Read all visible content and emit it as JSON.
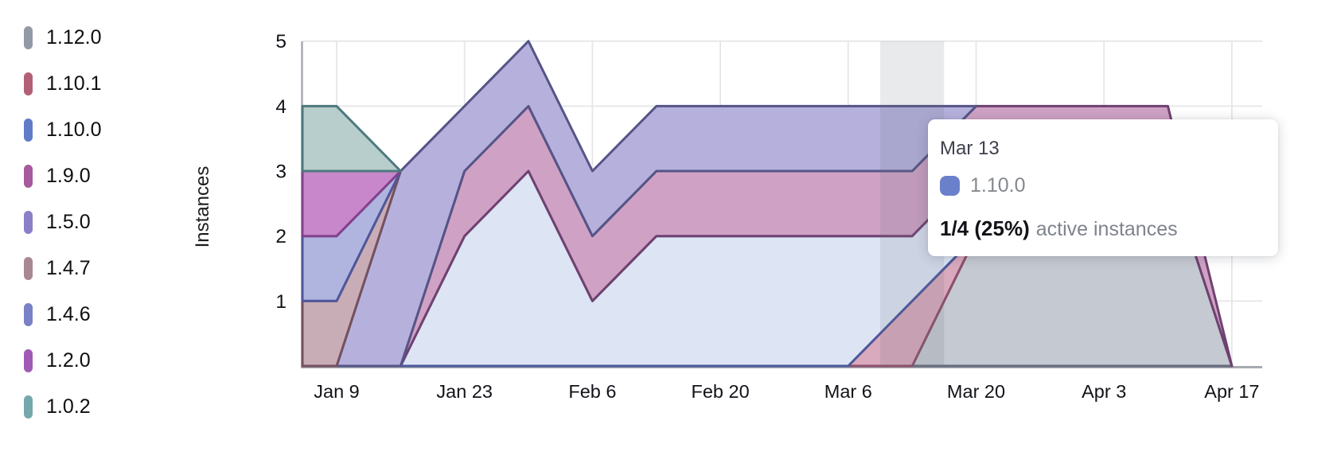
{
  "chart_data": {
    "type": "area",
    "stacked": true,
    "title": "",
    "xlabel": "",
    "ylabel": "Instances",
    "ylim": [
      0,
      5
    ],
    "yticks": [
      1,
      2,
      3,
      4,
      5
    ],
    "grid": true,
    "legend_position": "left",
    "stack_order_note": "series array order is stack order, bottom to top; legend shows same order top to bottom",
    "x": [
      "Jan 2",
      "Jan 9",
      "Jan 16",
      "Jan 23",
      "Jan 30",
      "Feb 6",
      "Feb 13",
      "Feb 20",
      "Feb 27",
      "Mar 6",
      "Mar 13",
      "Mar 20",
      "Mar 27",
      "Apr 3",
      "Apr 10",
      "Apr 17"
    ],
    "x_tick_indices": [
      1,
      3,
      5,
      7,
      9,
      11,
      13,
      15
    ],
    "x_tick_labels": [
      "Jan 9",
      "Jan 23",
      "Feb 6",
      "Feb 20",
      "Mar 6",
      "Mar 20",
      "Apr 3",
      "Apr 17"
    ],
    "series": [
      {
        "name": "1.12.0",
        "legend_color": "#939aa7",
        "fill": "#c5c9d1",
        "stroke": "#646b7e",
        "values": [
          0,
          0,
          0,
          0,
          0,
          0,
          0,
          0,
          0,
          0,
          0,
          2,
          3,
          3,
          3,
          0
        ]
      },
      {
        "name": "1.10.1",
        "legend_color": "#b26078",
        "fill": "#d9a9be",
        "stroke": "#8d4e6a",
        "values": [
          0,
          0,
          0,
          0,
          0,
          0,
          0,
          0,
          0,
          0,
          1,
          0,
          0,
          0,
          0,
          0
        ]
      },
      {
        "name": "1.10.0",
        "legend_color": "#5f7cc9",
        "fill": "#dde4f4",
        "stroke": "#4b589c",
        "values": [
          0,
          0,
          0,
          2,
          3,
          1,
          2,
          2,
          2,
          2,
          1,
          1,
          0,
          0,
          0,
          0
        ]
      },
      {
        "name": "1.9.0",
        "legend_color": "#a75a9e",
        "fill": "#cfa2c5",
        "stroke": "#6f4170",
        "values": [
          0,
          0,
          0,
          1,
          1,
          1,
          1,
          1,
          1,
          1,
          1,
          1,
          1,
          1,
          1,
          0
        ]
      },
      {
        "name": "1.5.0",
        "legend_color": "#8b7fc8",
        "fill": "#b6b1dc",
        "stroke": "#555487",
        "values": [
          0,
          0,
          3,
          1,
          1,
          1,
          1,
          1,
          1,
          1,
          1,
          0,
          0,
          0,
          0,
          0
        ]
      },
      {
        "name": "1.4.7",
        "legend_color": "#a98894",
        "fill": "#c9adb6",
        "stroke": "#75505f",
        "values": [
          1,
          1,
          0,
          0,
          0,
          0,
          0,
          0,
          0,
          0,
          0,
          0,
          0,
          0,
          0,
          0
        ]
      },
      {
        "name": "1.4.6",
        "legend_color": "#7a81c6",
        "fill": "#b0b5e0",
        "stroke": "#4f579b",
        "values": [
          1,
          1,
          0,
          0,
          0,
          0,
          0,
          0,
          0,
          0,
          0,
          0,
          0,
          0,
          0,
          0
        ]
      },
      {
        "name": "1.2.0",
        "legend_color": "#a05ab5",
        "fill": "#c787ca",
        "stroke": "#83418d",
        "values": [
          1,
          1,
          0,
          0,
          0,
          0,
          0,
          0,
          0,
          0,
          0,
          0,
          0,
          0,
          0,
          0
        ]
      },
      {
        "name": "1.0.2",
        "legend_color": "#74a8ac",
        "fill": "#b7cecc",
        "stroke": "#4e797d",
        "values": [
          1,
          1,
          0,
          0,
          0,
          0,
          0,
          0,
          0,
          0,
          0,
          0,
          0,
          0,
          0,
          0
        ]
      }
    ],
    "hover": {
      "index": 10,
      "label": "Mar 13"
    }
  },
  "tooltip": {
    "date": "Mar 13",
    "series": "1.10.0",
    "swatch_color": "#6b80ca",
    "value": "1/4 (25%)",
    "suffix": "active instances"
  },
  "colors": {
    "grid": "#e6e6e9",
    "axis_line": "#a7aab1",
    "tick_text": "#111318",
    "hover_band": "rgba(110,115,125,0.15)"
  }
}
